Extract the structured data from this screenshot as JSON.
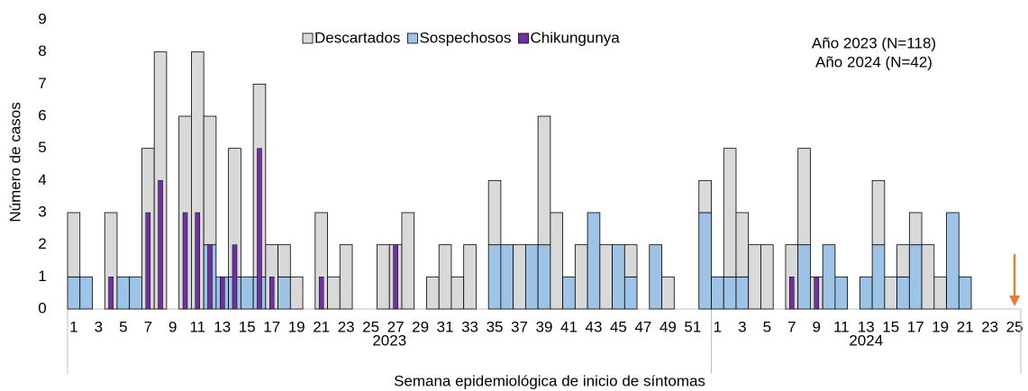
{
  "chart_data": {
    "type": "bar",
    "y_label": "Número de casos",
    "x_label": "Semana epidemiológica de inicio de síntomas",
    "annotations": [
      "Año 2023 (N=118)",
      "Año 2024 (N=42)"
    ],
    "groups": [
      {
        "label": "2023",
        "categories": [
          1,
          null,
          3,
          null,
          5,
          null,
          7,
          null,
          9,
          null,
          11,
          null,
          13,
          null,
          15,
          null,
          17,
          null,
          19,
          null,
          21,
          null,
          23,
          null,
          25,
          null,
          27,
          null,
          29,
          null,
          31,
          null,
          33,
          null,
          35,
          null,
          37,
          null,
          39,
          null,
          41,
          null,
          43,
          null,
          45,
          null,
          47,
          null,
          49,
          null,
          51,
          null
        ]
      },
      {
        "label": "2024",
        "categories": [
          1,
          null,
          3,
          null,
          5,
          null,
          7,
          null,
          9,
          null,
          11,
          null,
          13,
          null,
          15,
          null,
          17,
          null,
          19,
          null,
          21,
          null,
          23,
          null,
          25
        ]
      }
    ],
    "series": [
      {
        "name": "Descartados",
        "color": "#d9d9d9",
        "values": [
          2,
          0,
          0,
          3,
          0,
          0,
          5,
          8,
          0,
          6,
          8,
          4,
          0,
          4,
          0,
          6,
          2,
          1,
          1,
          0,
          3,
          1,
          2,
          0,
          0,
          2,
          2,
          3,
          0,
          1,
          2,
          1,
          2,
          0,
          2,
          0,
          2,
          0,
          4,
          3,
          0,
          2,
          0,
          2,
          0,
          1,
          0,
          0,
          1,
          0,
          0,
          1,
          0,
          4,
          2,
          2,
          2,
          0,
          2,
          3,
          1,
          0,
          0,
          0,
          0,
          2,
          1,
          1,
          1,
          2,
          1,
          0,
          0,
          0,
          0,
          0,
          0
        ]
      },
      {
        "name": "Sospechosos",
        "color": "#9dc3e6",
        "values": [
          1,
          1,
          0,
          0,
          1,
          1,
          0,
          0,
          0,
          0,
          0,
          2,
          1,
          1,
          1,
          1,
          0,
          1,
          0,
          0,
          0,
          0,
          0,
          0,
          0,
          0,
          0,
          0,
          0,
          0,
          0,
          0,
          0,
          0,
          2,
          2,
          0,
          2,
          2,
          0,
          1,
          0,
          3,
          0,
          2,
          1,
          0,
          2,
          0,
          0,
          0,
          3,
          1,
          1,
          1,
          0,
          0,
          0,
          0,
          2,
          0,
          2,
          1,
          0,
          1,
          2,
          0,
          1,
          2,
          0,
          0,
          3,
          1,
          0,
          0,
          0,
          0
        ]
      },
      {
        "name": "Chikungunya",
        "color": "#7030a0",
        "values": [
          0,
          0,
          0,
          1,
          0,
          0,
          3,
          4,
          0,
          3,
          3,
          2,
          1,
          2,
          0,
          5,
          1,
          0,
          0,
          0,
          1,
          0,
          0,
          0,
          0,
          0,
          2,
          0,
          0,
          0,
          0,
          0,
          0,
          0,
          0,
          0,
          0,
          0,
          0,
          0,
          0,
          0,
          0,
          0,
          0,
          0,
          0,
          0,
          0,
          0,
          0,
          0,
          0,
          0,
          0,
          0,
          0,
          0,
          1,
          0,
          1,
          0,
          0,
          0,
          0,
          0,
          0,
          0,
          0,
          0,
          0,
          0,
          0,
          0,
          0,
          0,
          0
        ]
      }
    ],
    "ylim": [
      0,
      9
    ],
    "yticks": [
      0,
      1,
      2,
      3,
      4,
      5,
      6,
      7,
      8,
      9
    ]
  }
}
